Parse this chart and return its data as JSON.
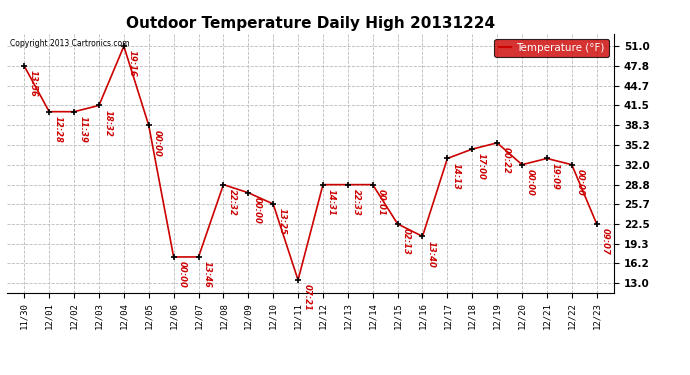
{
  "title": "Outdoor Temperature Daily High 20131224",
  "legend_label": "Temperature (°F)",
  "copyright": "Copyright 2013 Cartronics.com",
  "yticks": [
    13.0,
    16.2,
    19.3,
    22.5,
    25.7,
    28.8,
    32.0,
    35.2,
    38.3,
    41.5,
    44.7,
    47.8,
    51.0
  ],
  "ylim": [
    11.5,
    53.0
  ],
  "dates": [
    "11/30",
    "12/01",
    "12/02",
    "12/03",
    "12/04",
    "12/05",
    "12/06",
    "12/07",
    "12/08",
    "12/09",
    "12/10",
    "12/11",
    "12/12",
    "12/13",
    "12/14",
    "12/15",
    "12/16",
    "12/17",
    "12/18",
    "12/19",
    "12/20",
    "12/21",
    "12/22",
    "12/23"
  ],
  "values": [
    47.8,
    40.5,
    40.5,
    41.5,
    51.0,
    38.3,
    17.2,
    17.2,
    28.8,
    27.5,
    25.7,
    13.5,
    28.8,
    28.8,
    28.8,
    22.5,
    20.5,
    33.0,
    34.5,
    35.5,
    32.0,
    33.0,
    32.0,
    22.5
  ],
  "time_labels": [
    "13:56",
    "12:28",
    "11:39",
    "18:32",
    "19:16",
    "00:00",
    "00:00",
    "13:46",
    "22:32",
    "00:00",
    "13:25",
    "07:21",
    "14:31",
    "22:33",
    "00:01",
    "02:13",
    "13:40",
    "14:13",
    "17:00",
    "00:22",
    "00:00",
    "19:09",
    "00:00",
    "09:07"
  ],
  "line_color": "#cc0000",
  "marker_color": "#000000",
  "label_color": "#cc0000",
  "bg_color": "#ffffff",
  "grid_color": "#bbbbbb",
  "legend_bg": "#cc0000",
  "legend_text_color": "#ffffff"
}
